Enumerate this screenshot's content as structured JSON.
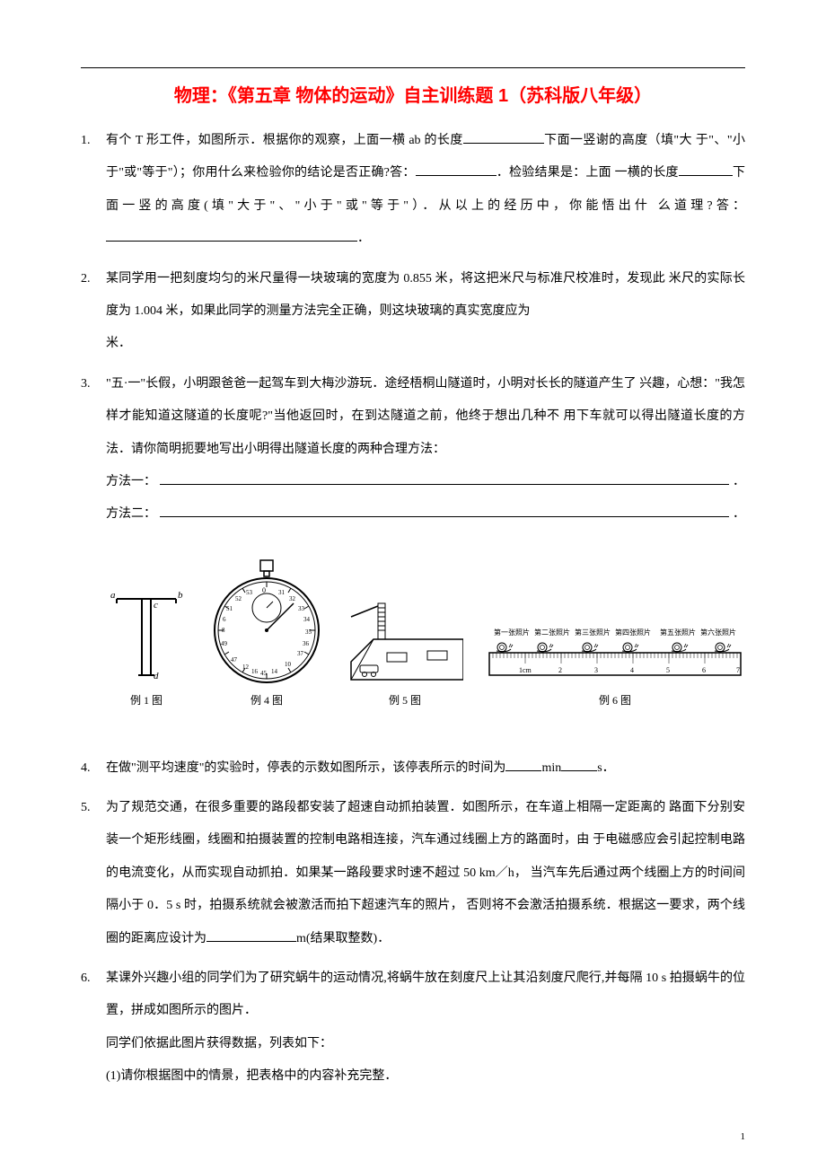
{
  "title": "物理：《第五章 物体的运动》自主训练题 1（苏科版八年级）",
  "questions": {
    "q1": {
      "num": "1.",
      "text_p1": "有个 T 形工件，如图所示．根据你的观察，上面一横 ab 的长度",
      "text_p2": "下面一竖谢的高度（填\"大",
      "text_p3": "于\"、\"小于\"或\"等于\"）；你用什么来检验你的结论是否正确?答：",
      "text_p4": "．检验结果是：上面",
      "text_p5": "一横的长度",
      "text_p6": "下面一竖的高度(填\"大于\"、\"小于\"或\"等于\"）．从以上的经历中，你能悟出什",
      "text_p7": "么道理?答：",
      "text_p8": "．"
    },
    "q2": {
      "num": "2.",
      "text_p1": "某同学用一把刻度均匀的米尺量得一块玻璃的宽度为 0.855 米，将这把米尺与标准尺校准时，发现此",
      "text_p2": "米尺的实际长度为 1.004 米，如果此同学的测量方法完全正确，则这块玻璃的真实宽度应为",
      "text_p3": "米．"
    },
    "q3": {
      "num": "3.",
      "text_p1": "\"五·一\"长假，小明跟爸爸一起驾车到大梅沙游玩．途经梧桐山隧道时，小明对长长的隧道产生了",
      "text_p2": "兴趣，心想：\"我怎样才能知道这隧道的长度呢?\"当他返回时，在到达隧道之前，他终于想出几种不",
      "text_p3": "用下车就可以得出隧道长度的方法．请你简明扼要地写出小明得出隧道长度的两种合理方法：",
      "method1_label": "方法一：",
      "method2_label": "方法二：",
      "period": "．"
    },
    "q4": {
      "num": "4.",
      "text_p1": "在做\"测平均速度\"的实验时，停表的示数如图所示，该停表所示的时间为",
      "text_p2": "min",
      "text_p3": "s．"
    },
    "q5": {
      "num": "5.",
      "text_p1": "为了规范交通，在很多重要的路段都安装了超速自动抓拍装置．如图所示，在车道上相隔一定距离的",
      "text_p2": "路面下分别安装一个矩形线圈，线圈和拍摄装置的控制电路相连接，汽车通过线圈上方的路面时，由",
      "text_p3": "于电磁感应会引起控制电路的电流变化，从而实现自动抓拍．如果某一路段要求时速不超过 50 km／h，",
      "text_p4": "当汽车先后通过两个线圈上方的时间间隔小于 0．5 s 时，拍摄系统就会被激活而拍下超速汽车的照片，",
      "text_p5": "否则将不会激活拍摄系统．根据这一要求，两个线圈的距离应设计为",
      "text_p6": "m(结果取整数)．"
    },
    "q6": {
      "num": "6.",
      "text_p1": "某课外兴趣小组的同学们为了研究蜗牛的运动情况,将蜗牛放在刻度尺上让其沿刻度尺爬行,并每隔 10",
      "text_p2": "s 拍摄蜗牛的位置，拼成如图所示的图片．",
      "text_p3": "同学们依据此图片获得数据，列表如下：",
      "text_p4": "(1)请你根据图中的情景，把表格中的内容补充完整．"
    }
  },
  "figures": {
    "fig1": {
      "label": "例 1 图",
      "labels": {
        "a": "a",
        "b": "b",
        "c": "c",
        "d": "d"
      }
    },
    "fig4": {
      "label": "例 4 图",
      "numbers": [
        "31",
        "32",
        "33",
        "34",
        "35",
        "36",
        "37",
        "0",
        "53",
        "52",
        "51",
        "49",
        "47",
        "16",
        "45",
        "14",
        "12",
        "10",
        "8",
        "6",
        "4",
        "2"
      ]
    },
    "fig5": {
      "label": "例 5 图"
    },
    "fig6": {
      "label": "例 6 图",
      "photo_labels": [
        "第一张照片",
        "第二张照片",
        "第三张照片",
        "第四张照片",
        "第五张照片",
        "第六张照片"
      ],
      "ruler_marks": [
        "1cm",
        "2",
        "3",
        "4",
        "5",
        "6",
        "7"
      ]
    }
  },
  "page_number": "1",
  "colors": {
    "title_color": "#ff0000",
    "text_color": "#000000",
    "background": "#ffffff"
  }
}
